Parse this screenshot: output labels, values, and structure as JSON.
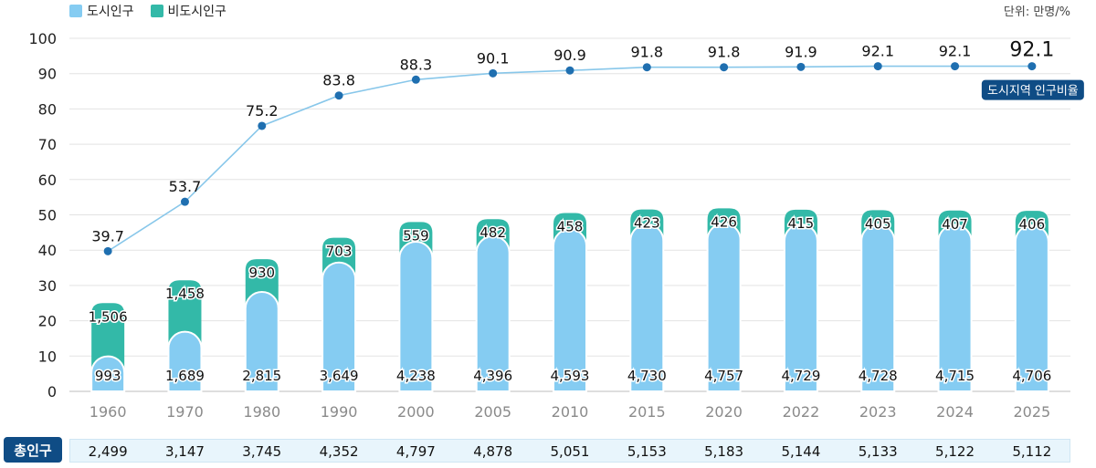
{
  "legend": {
    "urban_label": "도시인구",
    "rural_label": "비도시인구"
  },
  "unit_label": "단위: 만명/%",
  "total_row_label": "총인구",
  "colors": {
    "urban": "#85ccf2",
    "rural": "#33b9a8",
    "line": "#88c7ea",
    "dot": "#1f6fb0",
    "badge": "#0f4c85",
    "grid": "#e3e3e3",
    "axis_text": "#222222",
    "year_text": "#8a8a8a"
  },
  "chart_data": {
    "type": "bar",
    "categories": [
      "1960",
      "1970",
      "1980",
      "1990",
      "2000",
      "2005",
      "2010",
      "2015",
      "2020",
      "2022",
      "2023",
      "2024",
      "2025"
    ],
    "series": [
      {
        "name": "도시인구",
        "values": [
          993,
          1689,
          2815,
          3649,
          4238,
          4396,
          4593,
          4730,
          4757,
          4729,
          4728,
          4715,
          4706
        ],
        "labels": [
          "993",
          "1,689",
          "2,815",
          "3,649",
          "4,238",
          "4,396",
          "4,593",
          "4,730",
          "4,757",
          "4,729",
          "4,728",
          "4,715",
          "4,706"
        ]
      },
      {
        "name": "비도시인구",
        "values": [
          1506,
          1458,
          930,
          703,
          559,
          482,
          458,
          423,
          426,
          415,
          405,
          407,
          406
        ],
        "labels": [
          "1,506",
          "1,458",
          "930",
          "703",
          "559",
          "482",
          "458",
          "423",
          "426",
          "415",
          "405",
          "407",
          "406"
        ]
      }
    ],
    "line_series": {
      "name": "도시지역 인구비율",
      "values": [
        39.7,
        53.7,
        75.2,
        83.8,
        88.3,
        90.1,
        90.9,
        91.8,
        91.8,
        91.9,
        92.1,
        92.1,
        92.1
      ],
      "labels": [
        "39.7",
        "53.7",
        "75.2",
        "83.8",
        "88.3",
        "90.1",
        "90.9",
        "91.8",
        "91.8",
        "91.9",
        "92.1",
        "92.1",
        "92.1"
      ]
    },
    "totals": [
      "2,499",
      "3,147",
      "3,745",
      "4,352",
      "4,797",
      "4,878",
      "5,051",
      "5,153",
      "5,183",
      "5,144",
      "5,133",
      "5,122",
      "5,112"
    ],
    "y_ticks": [
      "0",
      "10",
      "20",
      "30",
      "40",
      "50",
      "60",
      "70",
      "80",
      "90",
      "100"
    ],
    "ylim": [
      0,
      100
    ],
    "grid": true,
    "legend_position": "top-left"
  }
}
